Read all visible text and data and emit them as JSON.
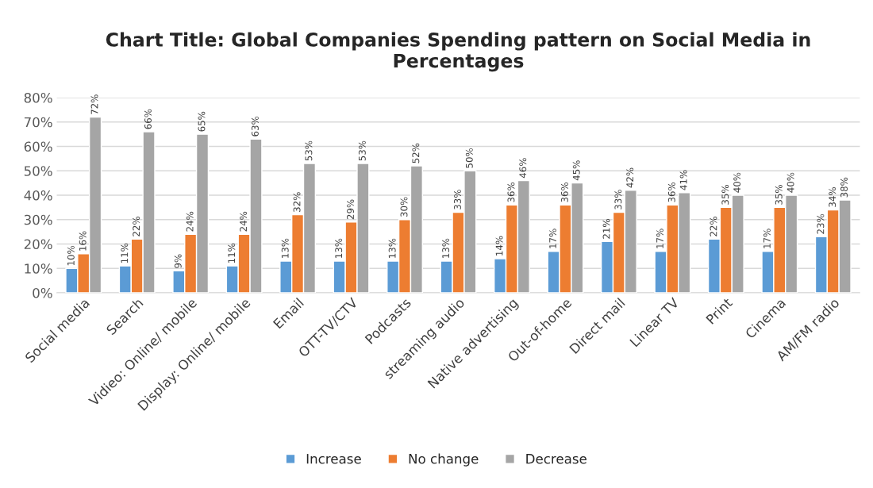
{
  "chart_data": {
    "type": "bar",
    "title": "Chart Title: Global Companies Spending pattern on Social Media in Percentages",
    "categories": [
      "Social media",
      "Search",
      "Vidieo: Online/ mobile",
      "Display: Online/ mobile",
      "Email",
      "OTT-TV/CTV",
      "Podcasts",
      "streaming audio",
      "Native advertising",
      "Out-of-home",
      "Direct mail",
      "Linear TV",
      "Print",
      "Cinema",
      "AM/FM radio"
    ],
    "series": [
      {
        "name": "Increase",
        "color": "#5b9bd5",
        "values": [
          10,
          11,
          9,
          11,
          13,
          13,
          13,
          13,
          14,
          17,
          21,
          17,
          22,
          17,
          23
        ],
        "value_labels": [
          "10%",
          "11%",
          "9%",
          "11%",
          "13%",
          "13%",
          "13%",
          "13%",
          "14%",
          "17%",
          "21%",
          "17%",
          "22%",
          "17%",
          "23%"
        ]
      },
      {
        "name": "No change",
        "color": "#ed7d31",
        "values": [
          16,
          22,
          24,
          24,
          32,
          29,
          30,
          33,
          36,
          36,
          33,
          36,
          35,
          35,
          34
        ],
        "value_labels": [
          "16%",
          "22%",
          "24%",
          "24%",
          "32%",
          "29%",
          "30%",
          "33%",
          "36%",
          "36%",
          "33%",
          "36%",
          "35%",
          "35%",
          "34%"
        ]
      },
      {
        "name": "Decrease",
        "color": "#a5a5a5",
        "values": [
          72,
          66,
          65,
          63,
          53,
          53,
          52,
          50,
          46,
          45,
          42,
          41,
          40,
          40,
          38
        ],
        "value_labels": [
          "72%",
          "66%",
          "65%",
          "63%",
          "53%",
          "53%",
          "52%",
          "50%",
          "46%",
          "45%",
          "42%",
          "41%",
          "40%",
          "40%",
          "38%"
        ]
      }
    ],
    "ylim": [
      0,
      80
    ],
    "yticks": [
      {
        "value": 0,
        "label": "0%"
      },
      {
        "value": 10,
        "label": "10%"
      },
      {
        "value": 20,
        "label": "20%"
      },
      {
        "value": 30,
        "label": "30%"
      },
      {
        "value": 40,
        "label": "40%"
      },
      {
        "value": 50,
        "label": "50%"
      },
      {
        "value": 60,
        "label": "60%"
      },
      {
        "value": 70,
        "label": "70%"
      },
      {
        "value": 80,
        "label": "80%"
      }
    ],
    "grid": "y",
    "legend": "bottom"
  }
}
